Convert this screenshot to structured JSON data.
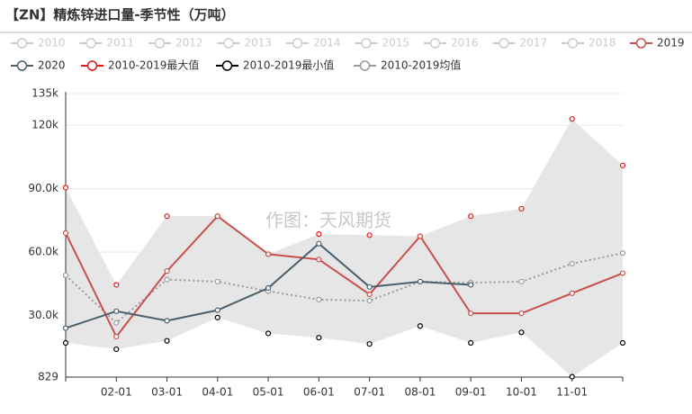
{
  "chart_data": {
    "type": "line",
    "title": "【ZN】精炼锌进口量-季节性（万吨）",
    "watermark": "作图：天风期货",
    "categories": [
      null,
      "02-01",
      "03-01",
      "04-01",
      "05-01",
      "06-01",
      "07-01",
      "08-01",
      "09-01",
      "10-01",
      "11-01",
      null
    ],
    "ylim": [
      829,
      135000
    ],
    "yticks": [
      829,
      {
        "value": 30000,
        "label": "30.0k"
      },
      {
        "value": 60000,
        "label": "60.0k"
      },
      {
        "value": 90000,
        "label": "90.0k"
      },
      {
        "value": 120000,
        "label": "120k"
      },
      {
        "value": 135000,
        "label": "135k"
      }
    ],
    "grid": true,
    "area_color": "#e6e6e6",
    "inactive_legend": [
      "2010",
      "2011",
      "2012",
      "2013",
      "2014",
      "2015",
      "2016",
      "2017",
      "2018"
    ],
    "inactive_color": "#cccccc",
    "series": [
      {
        "name": "2019",
        "color": "#c9504a",
        "style": "line",
        "values": [
          69000,
          20000,
          51000,
          77000,
          59000,
          56500,
          40000,
          67500,
          31000,
          31000,
          40500,
          50000
        ]
      },
      {
        "name": "2020",
        "color": "#4a5e6b",
        "style": "line",
        "values": [
          24000,
          32000,
          27500,
          32500,
          43000,
          64000,
          43500,
          46000,
          44500,
          null,
          null,
          null
        ]
      },
      {
        "name": "2010-2019最大值",
        "color": "#e8161b",
        "style": "points",
        "values": [
          90500,
          44500,
          77000,
          77000,
          59000,
          68500,
          68000,
          67500,
          77000,
          80500,
          123000,
          101000
        ]
      },
      {
        "name": "2010-2019最小值",
        "color": "#000000",
        "style": "points",
        "values": [
          17000,
          14000,
          18000,
          29000,
          21500,
          19500,
          16500,
          25000,
          17000,
          22000,
          1000,
          17000
        ]
      },
      {
        "name": "2010-2019均值",
        "color": "#9a9a9a",
        "style": "dotted",
        "values": [
          49000,
          26500,
          47000,
          46000,
          41500,
          37500,
          37000,
          46000,
          45500,
          46000,
          54500,
          59500
        ]
      }
    ]
  }
}
